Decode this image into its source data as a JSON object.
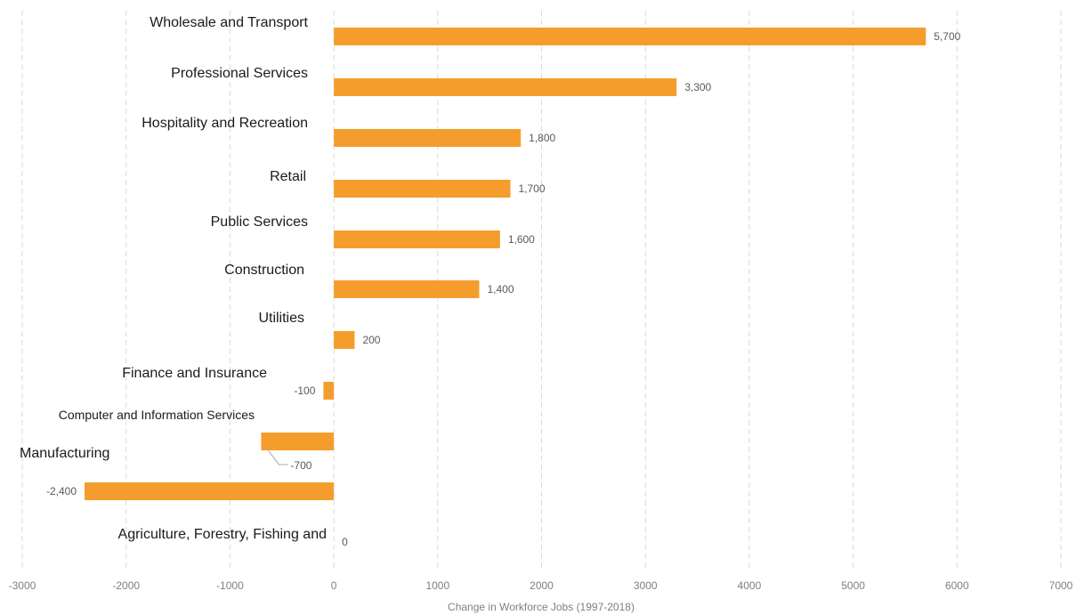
{
  "chart_data": {
    "type": "bar",
    "orientation": "horizontal",
    "title": "",
    "xlabel": "Change in Workforce Jobs (1997-2018)",
    "ylabel": "",
    "xlim": [
      -3000,
      7000
    ],
    "xticks": [
      -3000,
      -2000,
      -1000,
      0,
      1000,
      2000,
      3000,
      4000,
      5000,
      6000,
      7000
    ],
    "grid": "vertical dashed",
    "bar_color": "#f59d2c",
    "categories": [
      "Wholesale and Transport",
      "Professional Services",
      "Hospitality and Recreation",
      "Retail",
      "Public Services",
      "Construction",
      "Utilities",
      "Finance and Insurance",
      "Computer and Information Services",
      "Manufacturing",
      "Agriculture, Forestry, Fishing and"
    ],
    "values": [
      5700,
      3300,
      1800,
      1700,
      1600,
      1400,
      200,
      -100,
      -700,
      -2400,
      0
    ],
    "data_labels": [
      "5,700",
      "3,300",
      "1,800",
      "1,700",
      "1,600",
      "1,400",
      "200",
      "-100",
      "-700",
      "-2,400",
      "0"
    ]
  }
}
